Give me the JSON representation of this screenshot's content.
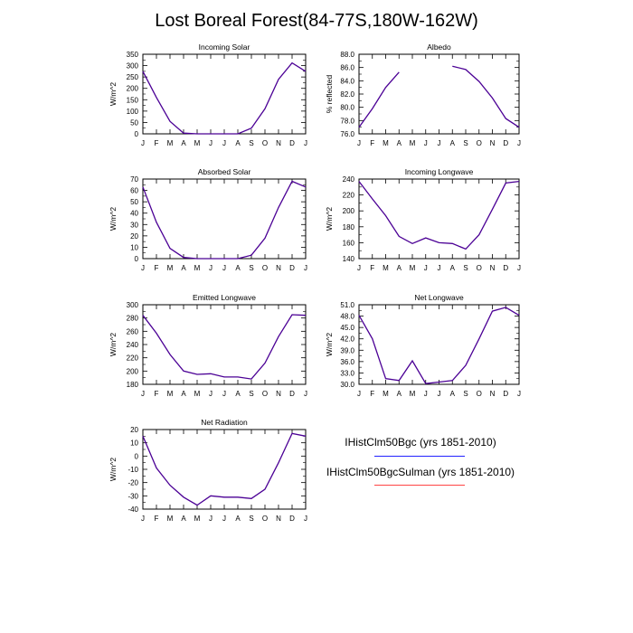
{
  "title": "Lost Boreal Forest(84-77S,180W-162W)",
  "months": [
    "J",
    "F",
    "M",
    "A",
    "M",
    "J",
    "J",
    "A",
    "S",
    "O",
    "N",
    "D",
    "J"
  ],
  "colors": {
    "series1": "#2222ff",
    "series2": "#ff4444",
    "overlap": "#4b0095"
  },
  "legend": [
    {
      "name": "IHistClm50Bgc (yrs 1851-2010)",
      "color": "#2222ff"
    },
    {
      "name": "IHistClm50BgcSulman (yrs 1851-2010)",
      "color": "#ff4444"
    }
  ],
  "chart_data": [
    {
      "type": "line",
      "title": "Incoming Solar",
      "ylabel": "W/m^2",
      "ylim": [
        0,
        350
      ],
      "yticks": [
        "0",
        "50",
        "100",
        "150",
        "200",
        "250",
        "300",
        "350"
      ],
      "series": [
        {
          "values": [
            275,
            160,
            55,
            3,
            0,
            0,
            0,
            0,
            25,
            110,
            240,
            312,
            275
          ]
        }
      ]
    },
    {
      "type": "line",
      "title": "Albedo",
      "ylabel": "% reflected",
      "ylim": [
        76,
        88
      ],
      "yticks": [
        "76.0",
        "78.0",
        "80.0",
        "82.0",
        "84.0",
        "86.0",
        "88.0"
      ],
      "series": [
        {
          "values": [
            77.0,
            79.8,
            83.0,
            85.3,
            null,
            null,
            null,
            86.2,
            85.7,
            83.9,
            81.4,
            78.3,
            77.0
          ]
        }
      ]
    },
    {
      "type": "line",
      "title": "Absorbed Solar",
      "ylabel": "W/m^2",
      "ylim": [
        0,
        70
      ],
      "yticks": [
        "0",
        "10",
        "20",
        "30",
        "40",
        "50",
        "60",
        "70"
      ],
      "series": [
        {
          "values": [
            63,
            32,
            9,
            1,
            0,
            0,
            0,
            0,
            3,
            18,
            45,
            68,
            63
          ]
        }
      ]
    },
    {
      "type": "line",
      "title": "Incoming Longwave",
      "ylabel": "W/m^2",
      "ylim": [
        140,
        240
      ],
      "yticks": [
        "140",
        "160",
        "180",
        "200",
        "220",
        "240"
      ],
      "series": [
        {
          "values": [
            237,
            215,
            194,
            168,
            159,
            166,
            160,
            159,
            152,
            170,
            202,
            235,
            237
          ]
        }
      ]
    },
    {
      "type": "line",
      "title": "Emitted Longwave",
      "ylabel": "W/m^2",
      "ylim": [
        180,
        300
      ],
      "yticks": [
        "180",
        "200",
        "220",
        "240",
        "260",
        "280",
        "300"
      ],
      "series": [
        {
          "values": [
            284,
            257,
            225,
            200,
            195,
            196,
            191,
            191,
            188,
            212,
            252,
            285,
            284
          ]
        }
      ]
    },
    {
      "type": "line",
      "title": "Net Longwave",
      "ylabel": "W/m^2",
      "ylim": [
        30,
        51
      ],
      "yticks": [
        "30.0",
        "33.0",
        "36.0",
        "39.0",
        "42.0",
        "45.0",
        "48.0",
        "51.0"
      ],
      "series": [
        {
          "values": [
            48.2,
            42.0,
            31.5,
            31.0,
            36.2,
            30.2,
            30.6,
            31.0,
            35.0,
            42.0,
            49.3,
            50.3,
            48.2
          ]
        }
      ]
    },
    {
      "type": "line",
      "title": "Net Radiation",
      "ylabel": "W/m^2",
      "ylim": [
        -40,
        20
      ],
      "yticks": [
        "-40",
        "-30",
        "-20",
        "-10",
        "0",
        "10",
        "20"
      ],
      "series": [
        {
          "values": [
            15,
            -9,
            -22,
            -31,
            -37,
            -30,
            -31,
            -31,
            -32,
            -25,
            -5,
            17,
            15
          ]
        }
      ]
    }
  ]
}
